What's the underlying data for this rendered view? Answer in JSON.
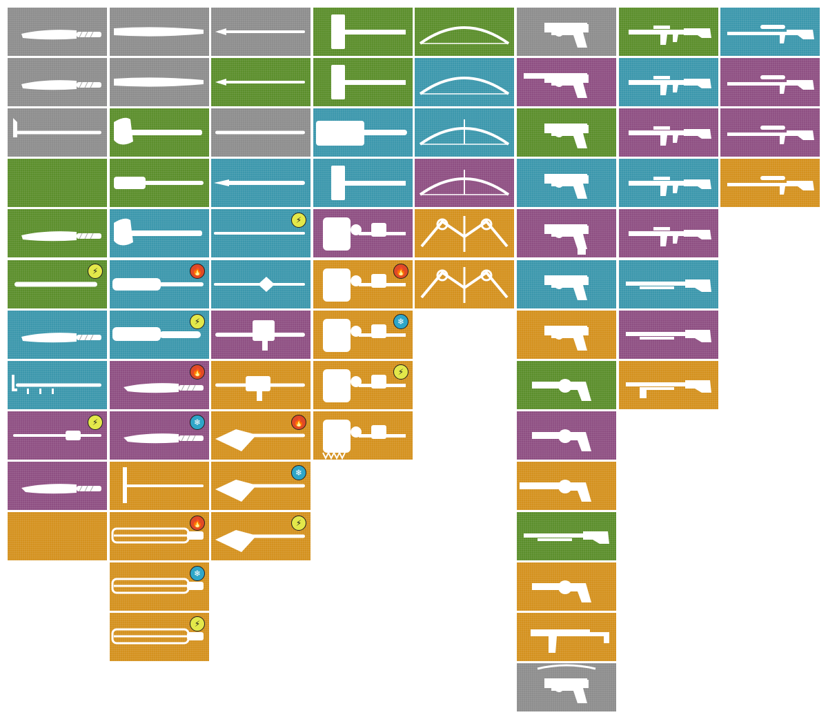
{
  "palette": {
    "gray": "#8d8d8d",
    "green": "#5b8e2b",
    "teal": "#3b97ac",
    "purple": "#8e4f82",
    "orange": "#d4911e",
    "icon": "#ffffff"
  },
  "badge_glyphs": {
    "shock": "⚡",
    "fire": "🔥",
    "ice": "❄"
  },
  "columns": [
    {
      "name": "melee-blades",
      "tiles": [
        {
          "color": "gray",
          "icon": "machete-icon"
        },
        {
          "color": "gray",
          "icon": "machete-icon"
        },
        {
          "color": "gray",
          "icon": "crowbar-icon"
        },
        {
          "color": "green",
          "icon": "shovel-icon"
        },
        {
          "color": "green",
          "icon": "machete-icon"
        },
        {
          "color": "green",
          "icon": "baton-icon",
          "badge": "shock"
        },
        {
          "color": "teal",
          "icon": "machete-icon"
        },
        {
          "color": "teal",
          "icon": "spiked-crowbar-icon"
        },
        {
          "color": "purple",
          "icon": "electrified-pipe-icon",
          "badge": "shock"
        },
        {
          "color": "purple",
          "icon": "cleaver-icon"
        },
        {
          "color": "orange",
          "icon": "scythe-blade-icon"
        }
      ]
    },
    {
      "name": "melee-blunt",
      "tiles": [
        {
          "color": "gray",
          "icon": "bat-icon"
        },
        {
          "color": "gray",
          "icon": "bat-icon"
        },
        {
          "color": "green",
          "icon": "axe-icon"
        },
        {
          "color": "green",
          "icon": "nail-club-icon"
        },
        {
          "color": "teal",
          "icon": "axe-icon"
        },
        {
          "color": "teal",
          "icon": "wrapped-club-icon",
          "badge": "fire"
        },
        {
          "color": "teal",
          "icon": "shock-mace-icon",
          "badge": "shock"
        },
        {
          "color": "purple",
          "icon": "curved-machete-icon",
          "badge": "fire"
        },
        {
          "color": "purple",
          "icon": "curved-machete-icon",
          "badge": "ice"
        },
        {
          "color": "orange",
          "icon": "hammer-spear-icon"
        },
        {
          "color": "orange",
          "icon": "chain-blade-icon",
          "badge": "fire"
        },
        {
          "color": "orange",
          "icon": "chain-blade-icon",
          "badge": "ice"
        },
        {
          "color": "orange",
          "icon": "chain-blade-icon",
          "badge": "shock"
        }
      ]
    },
    {
      "name": "melee-polearms",
      "tiles": [
        {
          "color": "gray",
          "icon": "spear-icon"
        },
        {
          "color": "green",
          "icon": "spear-icon"
        },
        {
          "color": "gray",
          "icon": "pipe-icon"
        },
        {
          "color": "teal",
          "icon": "bayonet-spear-icon"
        },
        {
          "color": "teal",
          "icon": "staff-icon",
          "badge": "shock"
        },
        {
          "color": "teal",
          "icon": "mace-spear-icon"
        },
        {
          "color": "purple",
          "icon": "drill-launcher-icon"
        },
        {
          "color": "orange",
          "icon": "gun-spear-icon"
        },
        {
          "color": "orange",
          "icon": "fang-spear-icon",
          "badge": "fire"
        },
        {
          "color": "orange",
          "icon": "fang-spear-icon",
          "badge": "ice"
        },
        {
          "color": "orange",
          "icon": "fang-spear-icon",
          "badge": "shock"
        }
      ]
    },
    {
      "name": "heavy-melee",
      "tiles": [
        {
          "color": "green",
          "icon": "sledgehammer-icon"
        },
        {
          "color": "green",
          "icon": "sledgehammer-icon"
        },
        {
          "color": "teal",
          "icon": "saw-blade-icon"
        },
        {
          "color": "teal",
          "icon": "sledgehammer-icon"
        },
        {
          "color": "purple",
          "icon": "engine-hammer-icon"
        },
        {
          "color": "orange",
          "icon": "engine-hammer-icon",
          "badge": "fire"
        },
        {
          "color": "orange",
          "icon": "engine-hammer-icon",
          "badge": "ice"
        },
        {
          "color": "orange",
          "icon": "engine-hammer-icon",
          "badge": "shock"
        },
        {
          "color": "orange",
          "icon": "spiked-engine-hammer-icon"
        }
      ]
    },
    {
      "name": "bows",
      "tiles": [
        {
          "color": "green",
          "icon": "longbow-icon"
        },
        {
          "color": "teal",
          "icon": "recurve-bow-icon"
        },
        {
          "color": "teal",
          "icon": "sight-bow-icon"
        },
        {
          "color": "purple",
          "icon": "sight-bow-icon"
        },
        {
          "color": "orange",
          "icon": "compound-bow-icon"
        },
        {
          "color": "orange",
          "icon": "compound-bow-icon"
        }
      ]
    },
    {
      "name": "pistols",
      "tiles": [
        {
          "color": "gray",
          "icon": "pistol-icon"
        },
        {
          "color": "purple",
          "icon": "suppressed-pistol-icon"
        },
        {
          "color": "green",
          "icon": "pistol-icon"
        },
        {
          "color": "teal",
          "icon": "pistol-icon"
        },
        {
          "color": "purple",
          "icon": "extended-pistol-icon"
        },
        {
          "color": "teal",
          "icon": "pistol-icon"
        },
        {
          "color": "orange",
          "icon": "pistol-icon"
        },
        {
          "color": "green",
          "icon": "revolver-icon"
        },
        {
          "color": "purple",
          "icon": "revolver-icon"
        },
        {
          "color": "orange",
          "icon": "long-revolver-icon"
        },
        {
          "color": "green",
          "icon": "sawed-off-shotgun-icon"
        },
        {
          "color": "orange",
          "icon": "revolver-icon"
        },
        {
          "color": "orange",
          "icon": "smg-icon"
        },
        {
          "color": "gray",
          "icon": "crossbow-pistol-icon"
        }
      ]
    },
    {
      "name": "rifles",
      "tiles": [
        {
          "color": "green",
          "icon": "assault-rifle-icon"
        },
        {
          "color": "teal",
          "icon": "assault-rifle-icon"
        },
        {
          "color": "purple",
          "icon": "assault-rifle-icon"
        },
        {
          "color": "teal",
          "icon": "assault-rifle-icon"
        },
        {
          "color": "purple",
          "icon": "assault-rifle-icon"
        },
        {
          "color": "teal",
          "icon": "shotgun-icon"
        },
        {
          "color": "purple",
          "icon": "shotgun-icon"
        },
        {
          "color": "orange",
          "icon": "bullpup-shotgun-icon"
        }
      ]
    },
    {
      "name": "snipers",
      "tiles": [
        {
          "color": "teal",
          "icon": "hunting-rifle-icon"
        },
        {
          "color": "purple",
          "icon": "sniper-rifle-icon"
        },
        {
          "color": "purple",
          "icon": "sniper-rifle-icon"
        },
        {
          "color": "orange",
          "icon": "sniper-rifle-icon"
        }
      ]
    }
  ]
}
